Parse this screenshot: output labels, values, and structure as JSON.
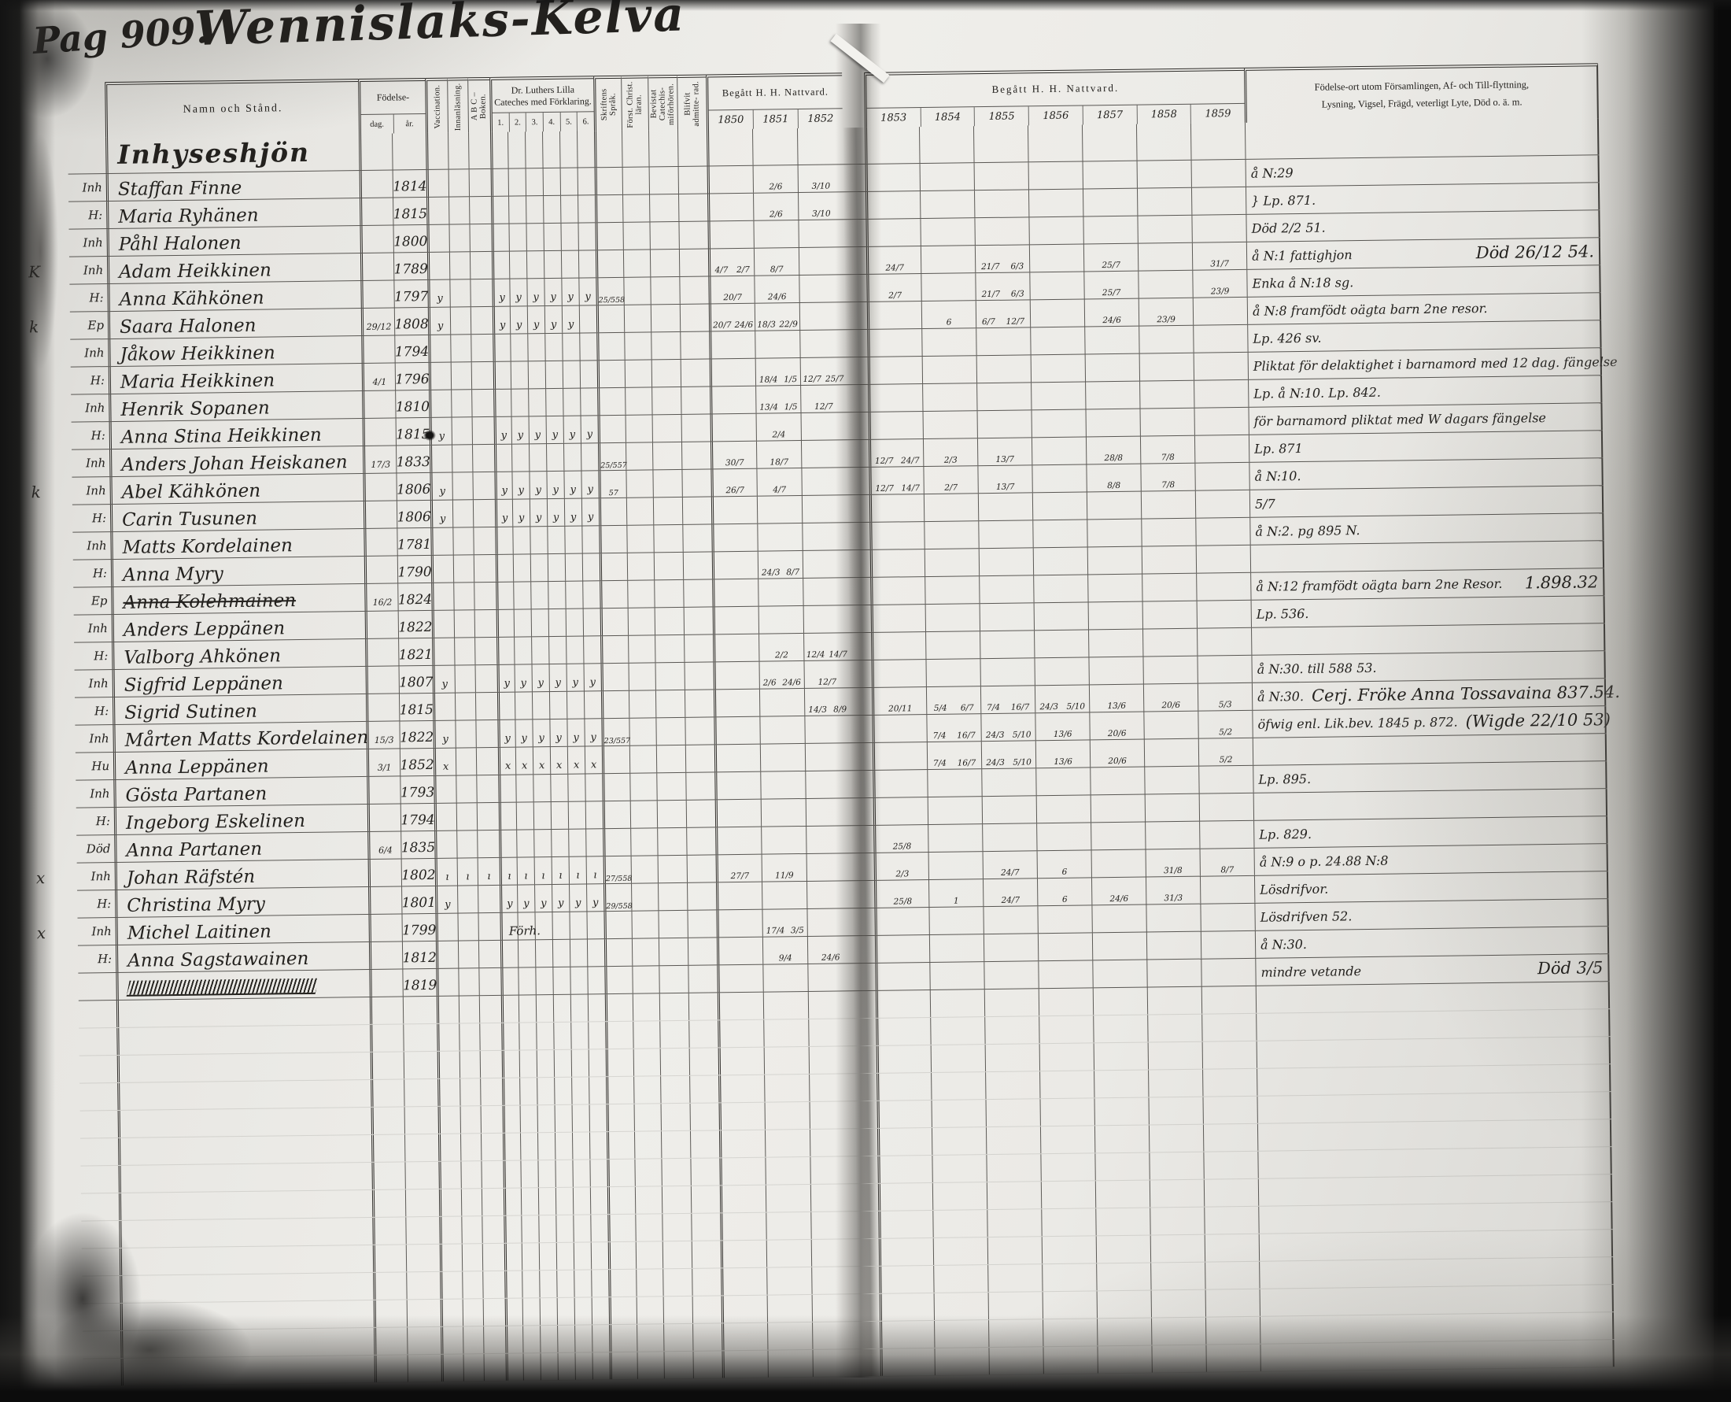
{
  "page": {
    "page_label": "Pag 909.",
    "title": "Wennislaks-Kelva"
  },
  "headers": {
    "name": "Namn och Stånd.",
    "birth": "Födelse-",
    "birth_sub": [
      "dag.",
      "år."
    ],
    "vaccination": "Vaccination.",
    "innanlasning": "Innanläsning.",
    "abc": "A B C – Boken.",
    "cateches": "Dr. Luthers Lilla Cateches med Förklaring.",
    "cateches_sub": [
      "1.",
      "2.",
      "3.",
      "4.",
      "5.",
      "6."
    ],
    "skriftens": "Skriftens Språk.",
    "forst_christ": "Först. Christ. läran.",
    "bevistat": "Bevistat Catechis- miförhören.",
    "blifvit": "Blifvit admitte- rad.",
    "nattvard_left": "Begått H. H. Nattvard.",
    "nattvard_right": "Begått H. H. Nattvard.",
    "remarks_line1": "Födelse-ort utom Församlingen, Af- och Till-flyttning,",
    "remarks_line2": "Lysning, Vigsel, Frägd, veterligt Lyte, Död o. ä. m."
  },
  "years_left": [
    "1850",
    "1851",
    "1852"
  ],
  "years_right": [
    "1853",
    "1854",
    "1855",
    "1856",
    "1857",
    "1858",
    "1859"
  ],
  "section_heading": "Inhyseshjön",
  "check_glyph_default": "y",
  "ink_color": "#23211e",
  "rows": [
    {
      "type": "heading"
    },
    {
      "prefix": "Inh",
      "name": "Staffan Finne",
      "year": "1814",
      "years": {
        "y1851": "2/6",
        "y1852": "3/10"
      },
      "remark": "å N:29"
    },
    {
      "prefix": "H:",
      "name": "Maria Ryhänen",
      "year": "1815",
      "years": {
        "y1851": "2/6",
        "y1852": "3/10"
      },
      "remark": "} Lp. 871."
    },
    {
      "prefix": "Inh",
      "name": "Påhl Halonen",
      "year": "1800",
      "remark": "Död 2/2 51."
    },
    {
      "prefix": "Inh",
      "margin": "K",
      "name": "Adam Heikkinen",
      "year": "1789",
      "years": {
        "y1850": "4/7|2/7",
        "y1851": "8/7",
        "y1853": "24/7",
        "y1855": "21/7|6/3",
        "y1857": "25/7",
        "y1859": "31/7"
      },
      "remark": "å N:1 fattighjon",
      "remark2": "Död 26/12 54."
    },
    {
      "prefix": "H:",
      "name": "Anna Kähkönen",
      "year": "1797",
      "checks": [
        "vacc",
        "c1",
        "c2",
        "c3",
        "c4",
        "c5",
        "c6"
      ],
      "skrift": "25/5|58",
      "years": {
        "y1850": "20/7",
        "y1851": "24/6",
        "y1853": "2/7",
        "y1855": "21/7|6/3",
        "y1857": "25/7",
        "y1859": "23/9"
      },
      "remark": "Enka å N:18 sg."
    },
    {
      "prefix": "Ep",
      "margin": "k",
      "day": "29/12",
      "name": "Saara Halonen",
      "year": "1808",
      "checks": [
        "vacc",
        "c1",
        "c2",
        "c3",
        "c4",
        "c5"
      ],
      "years": {
        "y1850": "20/7|24/6",
        "y1851": "18/3|22/9",
        "y1854": "6",
        "y1855": "6/7|12/7",
        "y1857": "24/6",
        "y1858": "23/9"
      },
      "remark": "å N:8 framfödt oägta barn 2ne resor."
    },
    {
      "prefix": "Inh",
      "name": "Jåkow Heikkinen",
      "year": "1794",
      "remark": "Lp. 426 sv."
    },
    {
      "prefix": "H:",
      "day": "4/1",
      "name": "Maria Heikkinen",
      "year": "1796",
      "years": {
        "y1851": "18/4|1/5",
        "y1852": "12/7|25/7"
      },
      "remark": "Pliktat för delaktighet i barnamord med 12 dag. fängelse"
    },
    {
      "prefix": "Inh",
      "name": "Henrik Sopanen",
      "year": "1810",
      "years": {
        "y1851": "13/4|1/5",
        "y1852": "12/7"
      },
      "remark": "Lp. å N:10. Lp. 842."
    },
    {
      "prefix": "H:",
      "name": "Anna Stina Heikkinen",
      "year": "1815",
      "checks": [
        "vacc",
        "c1",
        "c2",
        "c3",
        "c4",
        "c5",
        "c6"
      ],
      "years": {
        "y1851": "2/4"
      },
      "remark": "för barnamord pliktat med W dagars fängelse"
    },
    {
      "prefix": "Inh",
      "day": "17/3",
      "name": "Anders Johan Heiskanen",
      "year": "1833",
      "skrift": "25/5|57",
      "years": {
        "y1850": "30/7",
        "y1851": "18/7",
        "y1853": "12/7|24/7",
        "y1854": "2/3",
        "y1855": "13/7",
        "y1857": "28/8",
        "y1858": "7/8"
      },
      "remark": "Lp. 871"
    },
    {
      "prefix": "Inh",
      "margin": "k",
      "name": "Abel Kähkönen",
      "year": "1806",
      "checks": [
        "vacc",
        "c1",
        "c2",
        "c3",
        "c4",
        "c5",
        "c6"
      ],
      "skrift": "57",
      "years": {
        "y1850": "26/7",
        "y1851": "4/7",
        "y1853": "12/7|14/7",
        "y1854": "2/7",
        "y1855": "13/7",
        "y1857": "8/8",
        "y1858": "7/8"
      },
      "remark": "å N:10."
    },
    {
      "prefix": "H:",
      "name": "Carin Tusunen",
      "year": "1806",
      "checks": [
        "vacc",
        "c1",
        "c2",
        "c3",
        "c4",
        "c5",
        "c6"
      ],
      "remark": "5/7"
    },
    {
      "prefix": "Inh",
      "name": "Matts Kordelainen",
      "year": "1781",
      "remark": "å N:2. pg 895 N."
    },
    {
      "prefix": "H:",
      "name": "Anna Myry",
      "year": "1790",
      "years": {
        "y1851": "24/3|8/7"
      }
    },
    {
      "prefix": "Ep",
      "day": "16/2",
      "name": "Anna Kolehmainen",
      "year": "1824",
      "struck": true,
      "remark": "å N:12 framfödt oägta barn 2ne Resor.",
      "remark2": "1.898.32"
    },
    {
      "prefix": "Inh",
      "name": "Anders Leppänen",
      "year": "1822",
      "remark": "Lp. 536."
    },
    {
      "prefix": "H:",
      "name": "Valborg Ahkönen",
      "year": "1821",
      "years": {
        "y1851": "2/2",
        "y1852": "12/4|14/7"
      }
    },
    {
      "prefix": "Inh",
      "name": "Sigfrid Leppänen",
      "year": "1807",
      "checks": [
        "vacc",
        "c1",
        "c2",
        "c3",
        "c4",
        "c5",
        "c6"
      ],
      "years": {
        "y1851": "2/6|24/6",
        "y1852": "12/7"
      },
      "remark": "å N:30. till 588 53."
    },
    {
      "prefix": "H:",
      "name": "Sigrid Sutinen",
      "year": "1815",
      "years": {
        "y1852": "14/3|8/9",
        "y1853": "20/11",
        "y1854": "5/4|6/7",
        "y1855": "7/4|16/7",
        "y1856": "24/3|5/10",
        "y1857": "13/6",
        "y1858": "20/6",
        "y1859": "5/3"
      },
      "remark": "å N:30.",
      "remark2": "Cerj. Fröke Anna Tossavaina 837.54."
    },
    {
      "prefix": "Inh",
      "day": "15/3",
      "name": "Mårten Matts Kordelainen",
      "year": "1822",
      "checks": [
        "vacc",
        "c1",
        "c2",
        "c3",
        "c4",
        "c5",
        "c6"
      ],
      "skrift": "23/5|57",
      "years": {
        "y1854": "7/4|16/7",
        "y1855": "24/3|5/10",
        "y1856": "13/6",
        "y1857": "20/6",
        "y1859": "5/2"
      },
      "remark": "öfwig enl. Lik.bev. 1845 p. 872.",
      "remark2": "(Wigde 22/10 53)"
    },
    {
      "prefix": "Hu",
      "day": "3/1",
      "name": "Anna Leppänen",
      "year": "1852",
      "checks": [
        "vacc",
        "c1",
        "c2",
        "c3",
        "c4",
        "c5",
        "c6"
      ],
      "glyph": "x",
      "years": {
        "y1854": "7/4|16/7",
        "y1855": "24/3|5/10",
        "y1856": "13/6",
        "y1857": "20/6",
        "y1859": "5/2"
      }
    },
    {
      "prefix": "Inh",
      "name": "Gösta Partanen",
      "year": "1793",
      "remark": "Lp. 895."
    },
    {
      "prefix": "H:",
      "name": "Ingeborg Eskelinen",
      "year": "1794"
    },
    {
      "prefix": "Död",
      "day": "6/4",
      "name": "Anna Partanen",
      "year": "1835",
      "years": {
        "y1853": "25/8"
      },
      "remark": "Lp. 829."
    },
    {
      "prefix": "Inh",
      "margin": "x",
      "name": "Johan Räfstén",
      "year": "1802",
      "checks": [
        "vacc",
        "inn",
        "abc",
        "c1",
        "c2",
        "c3",
        "c4",
        "c5",
        "c6"
      ],
      "glyph": "ı",
      "skrift": "27/5|58",
      "years": {
        "y1850": "27/7",
        "y1851": "11/9",
        "y1853": "2/3",
        "y1855": "24/7",
        "y1856": "6",
        "y1858": "31/8",
        "y1859": "8/7"
      },
      "remark": "å N:9 o p. 24.88 N:8"
    },
    {
      "prefix": "H:",
      "name": "Christina Myry",
      "year": "1801",
      "checks": [
        "vacc",
        "c1",
        "c2",
        "c3",
        "c4",
        "c5",
        "c6"
      ],
      "skrift": "29/5|58",
      "years": {
        "y1853": "25/8",
        "y1854": "1",
        "y1855": "24/7",
        "y1856": "6",
        "y1857": "24/6",
        "y1858": "31/3"
      },
      "remark": "Lösdrifvor."
    },
    {
      "prefix": "Inh",
      "margin": "x",
      "name": "Michel Laitinen",
      "year": "1799",
      "note_mid": "Förh.",
      "years": {
        "y1851": "17/4|3/5"
      },
      "remark": "Lösdrifven 52."
    },
    {
      "prefix": "H:",
      "name": "Anna Sagstawainen",
      "year": "1812",
      "years": {
        "y1851": "9/4",
        "y1852": "24/6"
      },
      "remark": "å N:30."
    },
    {
      "prefix": "",
      "name": "",
      "year": "1819",
      "struck": true,
      "scribble": true,
      "remark": "mindre vetande",
      "remark2": "Död 3/5"
    }
  ],
  "empty_row_count": 14
}
